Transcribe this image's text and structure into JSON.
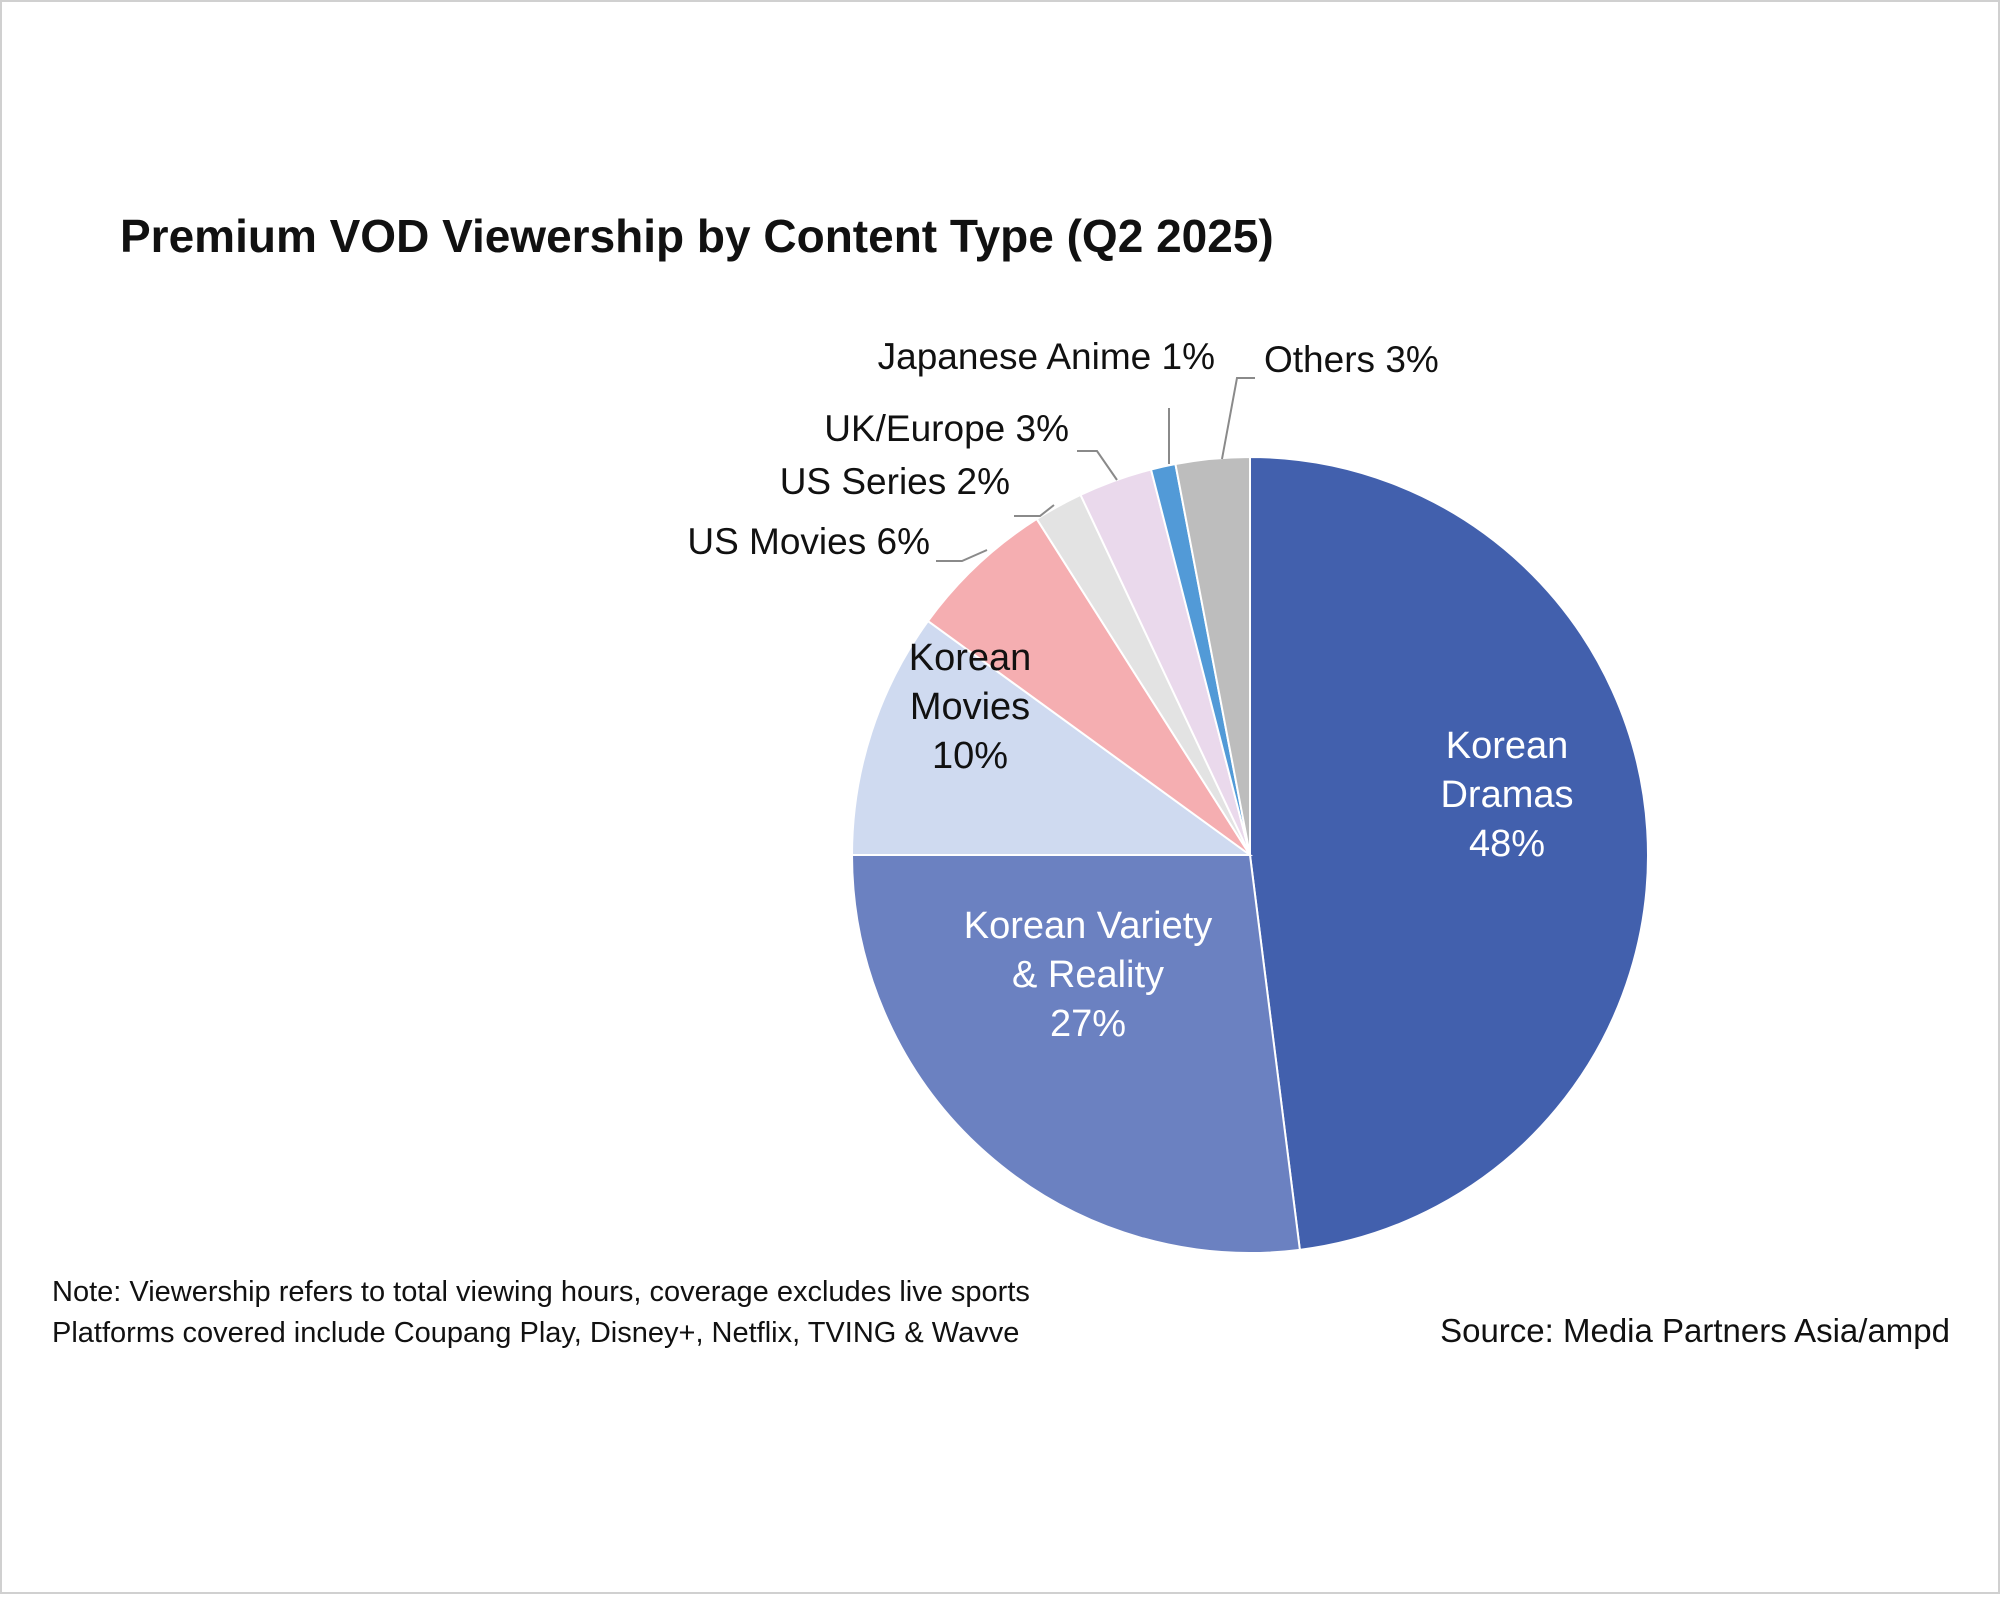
{
  "chart_data": {
    "type": "pie",
    "title": "Premium VOD Viewership by Content Type (Q2 2025)",
    "slices": [
      {
        "label_lines": [
          "Korean",
          "Dramas",
          "48%"
        ],
        "value": 48,
        "color": "#4260ad"
      },
      {
        "label_lines": [
          "Korean Variety",
          "& Reality",
          "27%"
        ],
        "value": 27,
        "color": "#6b81c1"
      },
      {
        "label_lines": [
          "Korean",
          "Movies",
          "10%"
        ],
        "value": 10,
        "color": "#cfdaf0"
      },
      {
        "label_lines": [
          "US Movies 6%"
        ],
        "value": 6,
        "color": "#f5aeb1"
      },
      {
        "label_lines": [
          "US Series 2%"
        ],
        "value": 2,
        "color": "#e3e3e3"
      },
      {
        "label_lines": [
          "UK/Europe 3%"
        ],
        "value": 3,
        "color": "#ead9ec"
      },
      {
        "label_lines": [
          "Japanese  Anime 1%"
        ],
        "value": 1,
        "color": "#529ad7"
      },
      {
        "label_lines": [
          "Others 3%"
        ],
        "value": 3,
        "color": "#bdbdbd"
      }
    ]
  },
  "footer": {
    "note_line1": "Note: Viewership refers to total viewing hours, coverage excludes live sports",
    "note_line2": "Platforms covered include Coupang Play, Disney+, Netflix, TVING & Wavve",
    "source": "Source: Media Partners Asia/ampd"
  }
}
